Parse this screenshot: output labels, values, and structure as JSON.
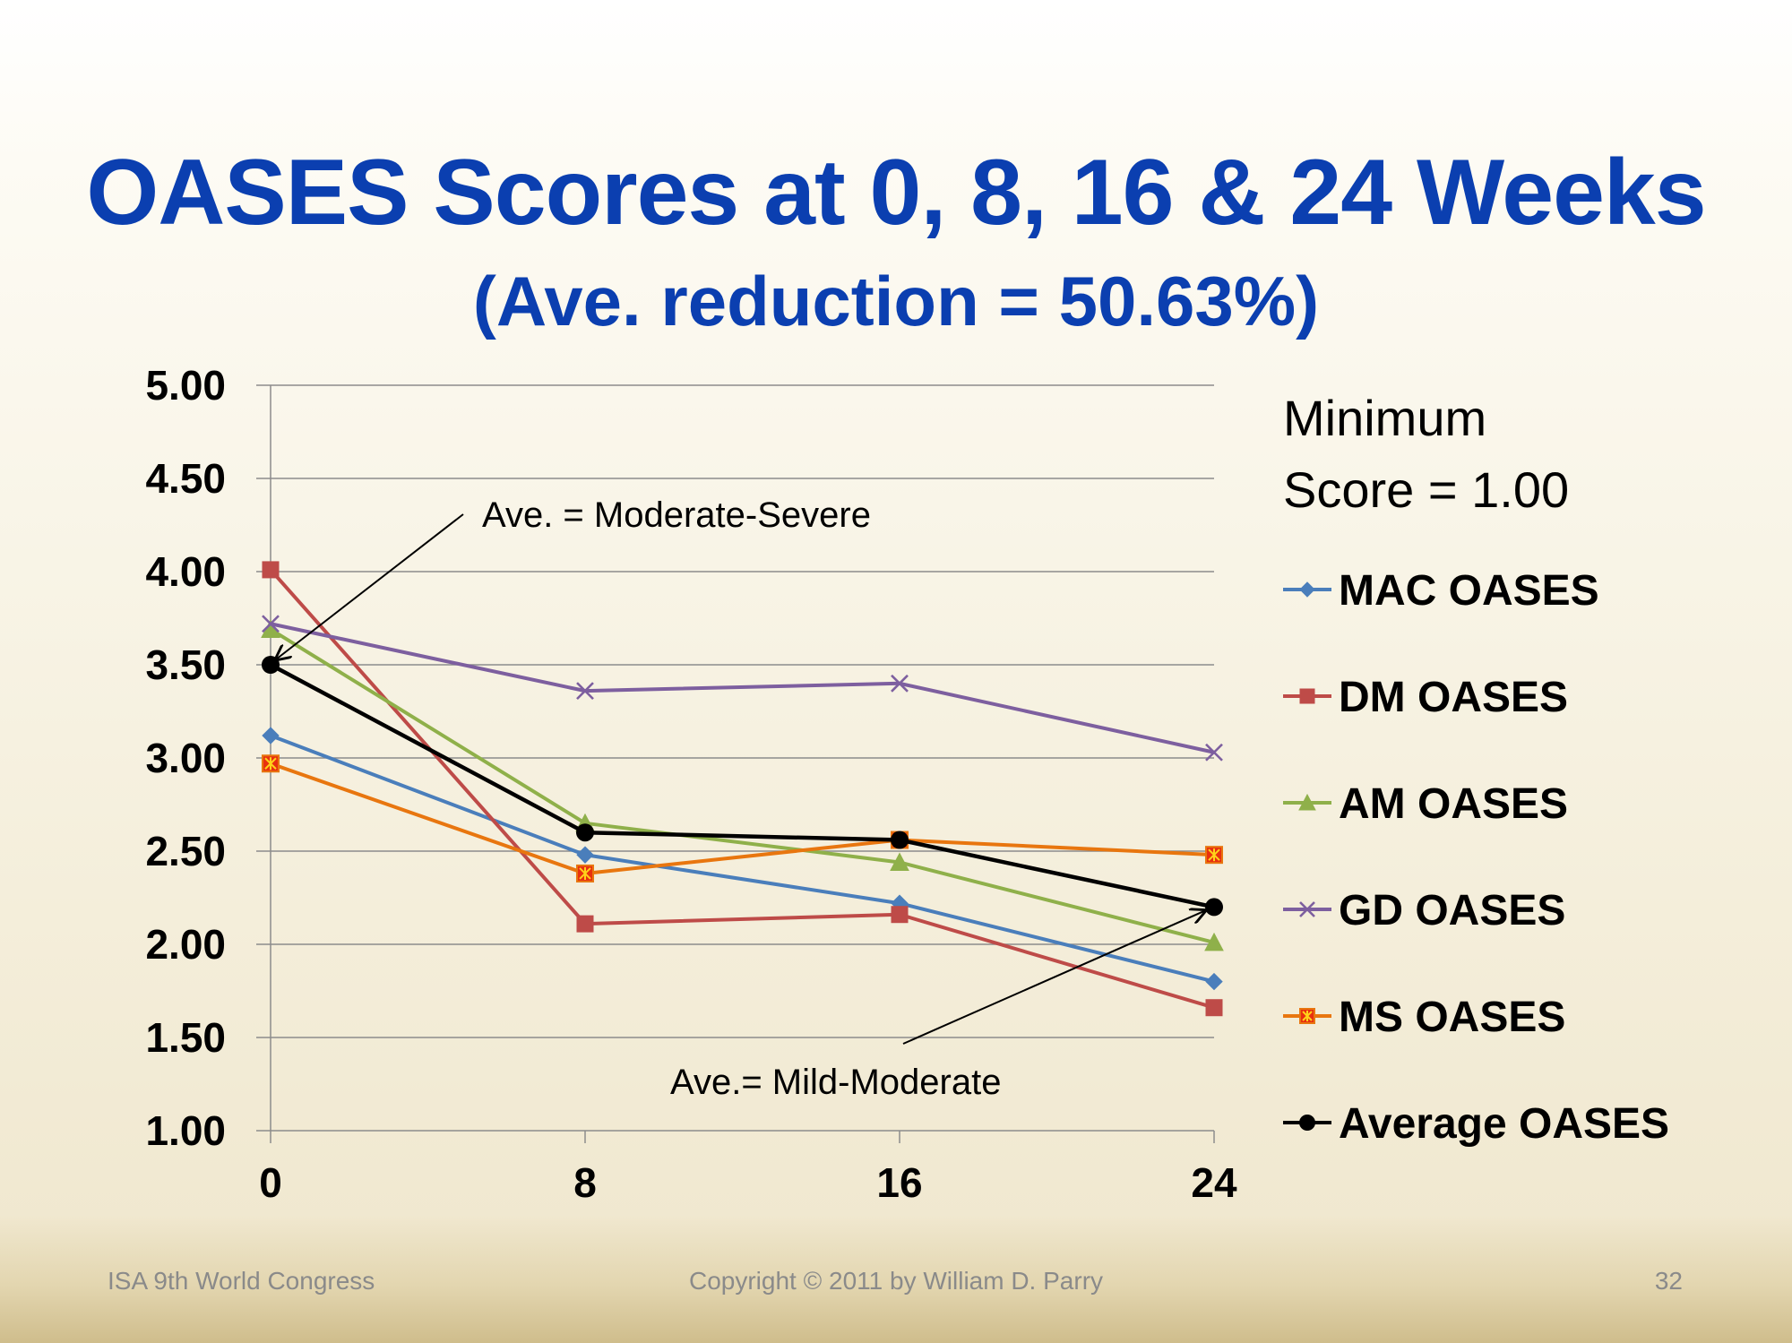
{
  "slide": {
    "title": "OASES Scores at 0, 8, 16 & 24 Weeks",
    "subtitle": "(Ave. reduction = 50.63%)",
    "footer_left": "ISA 9th World Congress",
    "footer_center": "Copyright © 2011 by William D. Parry",
    "page_number": "32"
  },
  "chart_data": {
    "type": "line",
    "x": [
      0,
      8,
      16,
      24
    ],
    "xlabels": [
      "0",
      "8",
      "16",
      "24"
    ],
    "ylim": [
      1.0,
      5.0
    ],
    "yticks": [
      "5.00",
      "4.50",
      "4.00",
      "3.50",
      "3.00",
      "2.50",
      "2.00",
      "1.50",
      "1.00"
    ],
    "grid": true,
    "legend_position": "right",
    "legend_note_line1": "Minimum",
    "legend_note_line2": "Score = 1.00",
    "series": [
      {
        "name": "MAC OASES",
        "color": "#4a7ebb",
        "marker": "diamond",
        "values": [
          3.12,
          2.48,
          2.22,
          1.8
        ]
      },
      {
        "name": "DM OASES",
        "color": "#be4b48",
        "marker": "square",
        "values": [
          4.01,
          2.11,
          2.16,
          1.66
        ]
      },
      {
        "name": "AM OASES",
        "color": "#8fb04a",
        "marker": "triangle",
        "values": [
          3.69,
          2.65,
          2.44,
          2.01
        ]
      },
      {
        "name": "GD OASES",
        "color": "#7d5f9f",
        "marker": "x",
        "values": [
          3.72,
          3.36,
          3.4,
          3.03
        ]
      },
      {
        "name": "MS OASES",
        "color": "#e8760f",
        "marker": "star-square",
        "values": [
          2.97,
          2.38,
          2.56,
          2.48
        ]
      },
      {
        "name": "Average OASES",
        "color": "#000000",
        "marker": "circle",
        "values": [
          3.5,
          2.6,
          2.56,
          2.2
        ]
      }
    ],
    "annotations": [
      {
        "text": "Ave. = Moderate-Severe",
        "points_to_x": 0,
        "points_to_y": 3.5
      },
      {
        "text": "Ave.= Mild-Moderate",
        "points_to_x": 24,
        "points_to_y": 2.2
      }
    ]
  }
}
